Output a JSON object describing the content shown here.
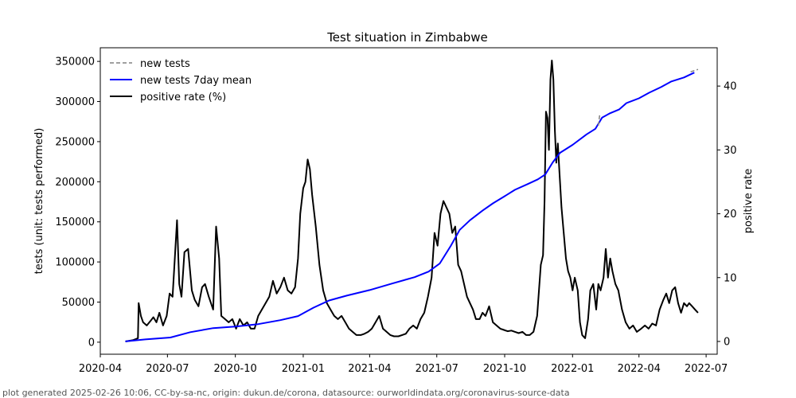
{
  "chart_data": {
    "type": "line",
    "title": "Test situation in Zimbabwe",
    "ylabel_left": "tests (unit: tests performed)",
    "ylabel_right": "positive rate",
    "ylim_left": [
      -15000,
      367000
    ],
    "ylim_right": [
      -2.0,
      46.0
    ],
    "xlim": [
      "2020-04-01",
      "2022-07-16"
    ],
    "y_ticks_left": [
      0,
      50000,
      100000,
      150000,
      200000,
      250000,
      300000,
      350000
    ],
    "y_ticks_right": [
      0,
      10,
      20,
      30,
      40
    ],
    "x_ticks": [
      "2020-04",
      "2020-07",
      "2020-10",
      "2021-01",
      "2021-04",
      "2021-07",
      "2021-10",
      "2022-01",
      "2022-04",
      "2022-07"
    ],
    "legend": {
      "position": "top-left",
      "entries": [
        {
          "label": "new tests",
          "color": "#808080",
          "style": "dashed"
        },
        {
          "label": "new tests 7day mean",
          "color": "#0000ff",
          "style": "solid"
        },
        {
          "label": "positive rate (%)",
          "color": "#000000",
          "style": "solid"
        }
      ]
    },
    "series": [
      {
        "name": "new tests",
        "axis": "left",
        "color": "#808080",
        "points": [
          [
            "2022-02-05",
            270000
          ],
          [
            "2022-02-07",
            285000
          ],
          [
            "2022-06-10",
            337000
          ],
          [
            "2022-06-20",
            340000
          ]
        ]
      },
      {
        "name": "new tests 7day mean",
        "axis": "left",
        "color": "#0000ff",
        "points": [
          [
            "2020-05-05",
            1000
          ],
          [
            "2020-06-01",
            3500
          ],
          [
            "2020-07-05",
            5800
          ],
          [
            "2020-08-01",
            12500
          ],
          [
            "2020-09-01",
            17500
          ],
          [
            "2020-10-01",
            19500
          ],
          [
            "2020-11-01",
            22500
          ],
          [
            "2020-12-01",
            27500
          ],
          [
            "2020-12-25",
            32500
          ],
          [
            "2021-01-15",
            43000
          ],
          [
            "2021-02-05",
            52000
          ],
          [
            "2021-03-01",
            58000
          ],
          [
            "2021-04-01",
            65000
          ],
          [
            "2021-05-01",
            73000
          ],
          [
            "2021-06-01",
            81000
          ],
          [
            "2021-06-20",
            88000
          ],
          [
            "2021-07-05",
            98000
          ],
          [
            "2021-07-20",
            120000
          ],
          [
            "2021-08-01",
            140000
          ],
          [
            "2021-08-15",
            152000
          ],
          [
            "2021-09-01",
            164000
          ],
          [
            "2021-09-15",
            173000
          ],
          [
            "2021-10-01",
            182000
          ],
          [
            "2021-10-15",
            190000
          ],
          [
            "2021-11-01",
            197000
          ],
          [
            "2021-11-15",
            203000
          ],
          [
            "2021-11-25",
            209000
          ],
          [
            "2021-12-05",
            224000
          ],
          [
            "2021-12-15",
            236000
          ],
          [
            "2022-01-01",
            246000
          ],
          [
            "2022-01-20",
            259000
          ],
          [
            "2022-02-01",
            266000
          ],
          [
            "2022-02-10",
            280000
          ],
          [
            "2022-02-20",
            285000
          ],
          [
            "2022-03-05",
            290000
          ],
          [
            "2022-03-15",
            298000
          ],
          [
            "2022-04-01",
            304000
          ],
          [
            "2022-04-15",
            311000
          ],
          [
            "2022-05-01",
            318000
          ],
          [
            "2022-05-15",
            325000
          ],
          [
            "2022-06-01",
            330000
          ],
          [
            "2022-06-15",
            336000
          ]
        ]
      },
      {
        "name": "positive rate (%)",
        "axis": "right",
        "color": "#000000",
        "points": [
          [
            "2020-05-05",
            0.0
          ],
          [
            "2020-05-15",
            0.2
          ],
          [
            "2020-05-22",
            0.5
          ],
          [
            "2020-05-23",
            6.0
          ],
          [
            "2020-05-26",
            4.0
          ],
          [
            "2020-05-29",
            3.0
          ],
          [
            "2020-06-03",
            2.5
          ],
          [
            "2020-06-08",
            3.2
          ],
          [
            "2020-06-12",
            3.8
          ],
          [
            "2020-06-16",
            3.0
          ],
          [
            "2020-06-20",
            4.5
          ],
          [
            "2020-06-25",
            2.5
          ],
          [
            "2020-06-30",
            4.0
          ],
          [
            "2020-07-04",
            7.5
          ],
          [
            "2020-07-08",
            7.0
          ],
          [
            "2020-07-11",
            13.0
          ],
          [
            "2020-07-14",
            19.0
          ],
          [
            "2020-07-17",
            9.0
          ],
          [
            "2020-07-20",
            7.0
          ],
          [
            "2020-07-24",
            14.0
          ],
          [
            "2020-07-29",
            14.5
          ],
          [
            "2020-08-03",
            8.0
          ],
          [
            "2020-08-07",
            6.5
          ],
          [
            "2020-08-12",
            5.5
          ],
          [
            "2020-08-17",
            8.5
          ],
          [
            "2020-08-21",
            9.0
          ],
          [
            "2020-08-26",
            7.0
          ],
          [
            "2020-09-01",
            5.0
          ],
          [
            "2020-09-05",
            18.0
          ],
          [
            "2020-09-09",
            13.0
          ],
          [
            "2020-09-12",
            4.0
          ],
          [
            "2020-09-17",
            3.5
          ],
          [
            "2020-09-22",
            3.0
          ],
          [
            "2020-09-27",
            3.5
          ],
          [
            "2020-10-02",
            2.0
          ],
          [
            "2020-10-07",
            3.5
          ],
          [
            "2020-10-12",
            2.5
          ],
          [
            "2020-10-17",
            3.0
          ],
          [
            "2020-10-22",
            2.0
          ],
          [
            "2020-10-27",
            2.0
          ],
          [
            "2020-11-01",
            4.0
          ],
          [
            "2020-11-06",
            5.0
          ],
          [
            "2020-11-11",
            6.0
          ],
          [
            "2020-11-16",
            7.0
          ],
          [
            "2020-11-21",
            9.5
          ],
          [
            "2020-11-26",
            7.5
          ],
          [
            "2020-12-01",
            8.5
          ],
          [
            "2020-12-06",
            10.0
          ],
          [
            "2020-12-11",
            8.0
          ],
          [
            "2020-12-16",
            7.5
          ],
          [
            "2020-12-21",
            8.5
          ],
          [
            "2020-12-25",
            13.0
          ],
          [
            "2020-12-28",
            20.0
          ],
          [
            "2021-01-01",
            24.0
          ],
          [
            "2021-01-04",
            25.0
          ],
          [
            "2021-01-07",
            28.5
          ],
          [
            "2021-01-10",
            27.0
          ],
          [
            "2021-01-13",
            23.0
          ],
          [
            "2021-01-18",
            18.0
          ],
          [
            "2021-01-23",
            12.0
          ],
          [
            "2021-01-28",
            8.0
          ],
          [
            "2021-02-02",
            6.0
          ],
          [
            "2021-02-07",
            5.0
          ],
          [
            "2021-02-12",
            4.0
          ],
          [
            "2021-02-17",
            3.5
          ],
          [
            "2021-02-22",
            4.0
          ],
          [
            "2021-02-27",
            3.0
          ],
          [
            "2021-03-04",
            2.0
          ],
          [
            "2021-03-09",
            1.5
          ],
          [
            "2021-03-14",
            1.0
          ],
          [
            "2021-03-20",
            1.0
          ],
          [
            "2021-03-25",
            1.2
          ],
          [
            "2021-03-30",
            1.5
          ],
          [
            "2021-04-04",
            2.0
          ],
          [
            "2021-04-09",
            3.0
          ],
          [
            "2021-04-14",
            4.0
          ],
          [
            "2021-04-19",
            2.0
          ],
          [
            "2021-04-24",
            1.5
          ],
          [
            "2021-04-29",
            1.0
          ],
          [
            "2021-05-04",
            0.8
          ],
          [
            "2021-05-10",
            0.8
          ],
          [
            "2021-05-15",
            1.0
          ],
          [
            "2021-05-20",
            1.2
          ],
          [
            "2021-05-25",
            2.0
          ],
          [
            "2021-05-30",
            2.5
          ],
          [
            "2021-06-04",
            2.0
          ],
          [
            "2021-06-09",
            3.5
          ],
          [
            "2021-06-14",
            4.5
          ],
          [
            "2021-06-19",
            7.0
          ],
          [
            "2021-06-24",
            10.0
          ],
          [
            "2021-06-28",
            17.0
          ],
          [
            "2021-07-02",
            15.0
          ],
          [
            "2021-07-06",
            20.0
          ],
          [
            "2021-07-10",
            22.0
          ],
          [
            "2021-07-14",
            21.0
          ],
          [
            "2021-07-18",
            20.0
          ],
          [
            "2021-07-22",
            17.0
          ],
          [
            "2021-07-26",
            18.0
          ],
          [
            "2021-07-30",
            12.0
          ],
          [
            "2021-08-03",
            11.0
          ],
          [
            "2021-08-07",
            9.0
          ],
          [
            "2021-08-11",
            7.0
          ],
          [
            "2021-08-15",
            6.0
          ],
          [
            "2021-08-19",
            5.0
          ],
          [
            "2021-08-23",
            3.5
          ],
          [
            "2021-08-28",
            3.5
          ],
          [
            "2021-09-01",
            4.5
          ],
          [
            "2021-09-05",
            4.0
          ],
          [
            "2021-09-10",
            5.5
          ],
          [
            "2021-09-15",
            3.0
          ],
          [
            "2021-09-20",
            2.5
          ],
          [
            "2021-09-25",
            2.0
          ],
          [
            "2021-09-30",
            1.8
          ],
          [
            "2021-10-05",
            1.6
          ],
          [
            "2021-10-10",
            1.7
          ],
          [
            "2021-10-15",
            1.5
          ],
          [
            "2021-10-20",
            1.3
          ],
          [
            "2021-10-25",
            1.5
          ],
          [
            "2021-10-30",
            1.0
          ],
          [
            "2021-11-04",
            1.0
          ],
          [
            "2021-11-09",
            1.5
          ],
          [
            "2021-11-14",
            4.0
          ],
          [
            "2021-11-19",
            12.0
          ],
          [
            "2021-11-22",
            13.5
          ],
          [
            "2021-11-24",
            22.0
          ],
          [
            "2021-11-26",
            36.0
          ],
          [
            "2021-11-28",
            35.0
          ],
          [
            "2021-11-30",
            30.0
          ],
          [
            "2021-12-02",
            41.0
          ],
          [
            "2021-12-04",
            44.0
          ],
          [
            "2021-12-06",
            41.0
          ],
          [
            "2021-12-08",
            33.0
          ],
          [
            "2021-12-10",
            28.0
          ],
          [
            "2021-12-12",
            31.0
          ],
          [
            "2021-12-14",
            27.0
          ],
          [
            "2021-12-17",
            21.0
          ],
          [
            "2021-12-20",
            17.0
          ],
          [
            "2021-12-23",
            13.0
          ],
          [
            "2021-12-26",
            11.0
          ],
          [
            "2021-12-29",
            10.0
          ],
          [
            "2022-01-01",
            8.0
          ],
          [
            "2022-01-04",
            10.0
          ],
          [
            "2022-01-08",
            8.0
          ],
          [
            "2022-01-11",
            3.0
          ],
          [
            "2022-01-14",
            1.0
          ],
          [
            "2022-01-18",
            0.5
          ],
          [
            "2022-01-22",
            3.5
          ],
          [
            "2022-01-25",
            8.0
          ],
          [
            "2022-01-29",
            9.0
          ],
          [
            "2022-02-02",
            5.0
          ],
          [
            "2022-02-05",
            9.0
          ],
          [
            "2022-02-08",
            8.0
          ],
          [
            "2022-02-12",
            10.0
          ],
          [
            "2022-02-15",
            14.5
          ],
          [
            "2022-02-18",
            10.0
          ],
          [
            "2022-02-21",
            13.0
          ],
          [
            "2022-02-24",
            11.0
          ],
          [
            "2022-02-28",
            9.0
          ],
          [
            "2022-03-04",
            8.0
          ],
          [
            "2022-03-09",
            5.0
          ],
          [
            "2022-03-14",
            3.0
          ],
          [
            "2022-03-19",
            2.0
          ],
          [
            "2022-03-24",
            2.5
          ],
          [
            "2022-03-29",
            1.5
          ],
          [
            "2022-04-04",
            2.0
          ],
          [
            "2022-04-09",
            2.5
          ],
          [
            "2022-04-14",
            2.0
          ],
          [
            "2022-04-19",
            2.8
          ],
          [
            "2022-04-24",
            2.5
          ],
          [
            "2022-04-29",
            5.0
          ],
          [
            "2022-05-04",
            6.5
          ],
          [
            "2022-05-08",
            7.5
          ],
          [
            "2022-05-12",
            6.0
          ],
          [
            "2022-05-16",
            8.0
          ],
          [
            "2022-05-20",
            8.5
          ],
          [
            "2022-05-24",
            6.0
          ],
          [
            "2022-05-28",
            4.5
          ],
          [
            "2022-06-01",
            6.0
          ],
          [
            "2022-06-05",
            5.5
          ],
          [
            "2022-06-08",
            6.0
          ],
          [
            "2022-06-12",
            5.5
          ],
          [
            "2022-06-16",
            5.0
          ],
          [
            "2022-06-20",
            4.5
          ]
        ]
      }
    ]
  },
  "footer_text": "plot generated 2025-02-26 10:06, CC-by-sa-nc, origin: dukun.de/corona, datasource: ourworldindata.org/coronavirus-source-data"
}
